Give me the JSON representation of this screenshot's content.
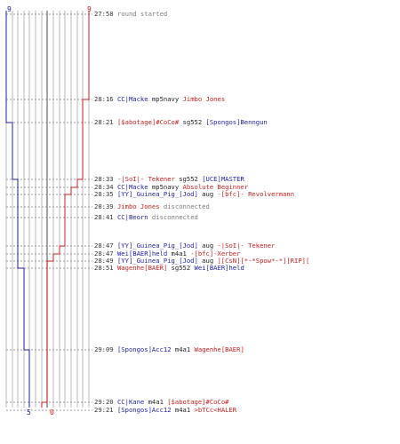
{
  "scores": {
    "blue_start": "9",
    "red_start": "9",
    "blue_end": "5",
    "red_end": "0",
    "colors": {
      "blue": "#1c1ca8",
      "red": "#c81e1e"
    }
  },
  "events": [
    {
      "time": "27:58",
      "parts": [
        {
          "text": "round started",
          "c": "gray"
        }
      ]
    },
    {
      "time": "28:16",
      "parts": [
        {
          "text": "CC|Macke",
          "c": "blue"
        },
        {
          "text": " mp5navy ",
          "c": "blk"
        },
        {
          "text": "Jimbo Jones",
          "c": "red"
        }
      ]
    },
    {
      "time": "28:21",
      "parts": [
        {
          "text": "[$abotage]#CoCo#",
          "c": "red"
        },
        {
          "text": " sg552 ",
          "c": "blk"
        },
        {
          "text": "[Spongos]Benngun",
          "c": "blue"
        }
      ]
    },
    {
      "time": "28:33",
      "parts": [
        {
          "text": "-|SoI|- Tekener",
          "c": "red"
        },
        {
          "text": " sg552 ",
          "c": "blk"
        },
        {
          "text": "[UCE]MASTER",
          "c": "blue"
        }
      ]
    },
    {
      "time": "28:34",
      "parts": [
        {
          "text": "CC|Macke",
          "c": "blue"
        },
        {
          "text": " mp5navy ",
          "c": "blk"
        },
        {
          "text": "Absolute Beginner",
          "c": "red"
        }
      ]
    },
    {
      "time": "28:35",
      "parts": [
        {
          "text": "[YY]_Guinea_Pig_[Jod]",
          "c": "blue"
        },
        {
          "text": " aug ",
          "c": "blk"
        },
        {
          "text": "-[bfc]- Revolvermann",
          "c": "red"
        }
      ]
    },
    {
      "time": "28:39",
      "parts": [
        {
          "text": "Jimbo Jones",
          "c": "red"
        },
        {
          "text": " disconnected",
          "c": "gray"
        }
      ]
    },
    {
      "time": "28:41",
      "parts": [
        {
          "text": "CC|Beorn",
          "c": "blue"
        },
        {
          "text": " disconnected",
          "c": "gray"
        }
      ]
    },
    {
      "time": "28:47",
      "parts": [
        {
          "text": "[YY]_Guinea_Pig_[Jod]",
          "c": "blue"
        },
        {
          "text": " aug ",
          "c": "blk"
        },
        {
          "text": "-|SoI|- Tekener",
          "c": "red"
        }
      ]
    },
    {
      "time": "28:47",
      "parts": [
        {
          "text": "Wei[BAER]held",
          "c": "blue"
        },
        {
          "text": " m4a1 ",
          "c": "blk"
        },
        {
          "text": "-[bfc]-Xerber",
          "c": "red"
        }
      ]
    },
    {
      "time": "28:49",
      "parts": [
        {
          "text": "[YY]_Guinea_Pig_[Jod]",
          "c": "blue"
        },
        {
          "text": " aug ",
          "c": "blk"
        },
        {
          "text": "][CsN][*-*Spow*-*][RIP][",
          "c": "red"
        }
      ]
    },
    {
      "time": "28:51",
      "parts": [
        {
          "text": "Wagenhe[BAER]",
          "c": "red"
        },
        {
          "text": " sg552 ",
          "c": "blk"
        },
        {
          "text": "Wei[BAER]held",
          "c": "blue"
        }
      ]
    },
    {
      "time": "29:09",
      "parts": [
        {
          "text": "[Spongos]Acc12",
          "c": "blue"
        },
        {
          "text": " m4a1 ",
          "c": "blk"
        },
        {
          "text": "Wagenhe[BAER]",
          "c": "red"
        }
      ]
    },
    {
      "time": "29:20",
      "parts": [
        {
          "text": "CC|Kane",
          "c": "blue"
        },
        {
          "text": " m4a1 ",
          "c": "blk"
        },
        {
          "text": "[$abotage]#CoCo#",
          "c": "red"
        }
      ]
    },
    {
      "time": "29:21",
      "parts": [
        {
          "text": "[Spongos]Acc12",
          "c": "blue"
        },
        {
          "text": " m4a1 ",
          "c": "blk"
        },
        {
          "text": ">bTCc<HALER",
          "c": "red"
        }
      ]
    }
  ]
}
